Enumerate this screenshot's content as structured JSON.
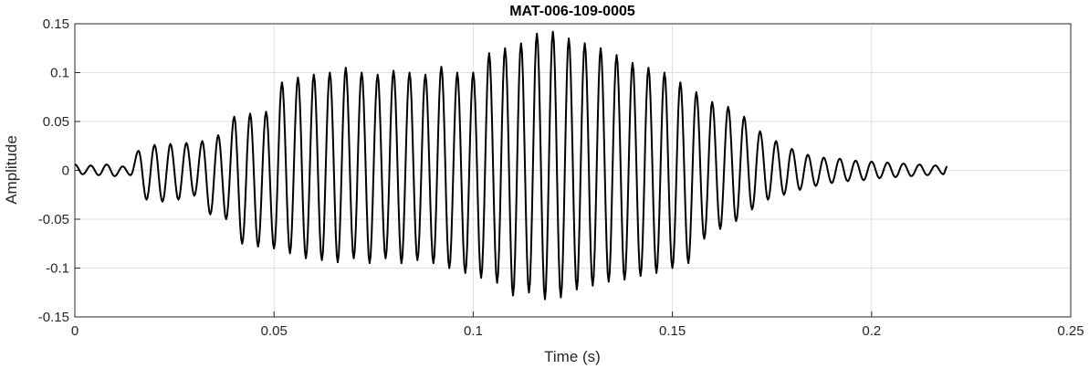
{
  "chart_data": {
    "type": "line",
    "title": "MAT-006-109-0005",
    "xlabel": "Time (s)",
    "ylabel": "Amplitude",
    "xlim": [
      0,
      0.25
    ],
    "ylim": [
      -0.15,
      0.15
    ],
    "grid": true,
    "x_ticks": [
      0,
      0.05,
      0.1,
      0.15,
      0.2,
      0.25
    ],
    "x_tick_labels": [
      "0",
      "0.05",
      "0.1",
      "0.15",
      "0.2",
      "0.25"
    ],
    "y_ticks": [
      -0.15,
      -0.1,
      -0.05,
      0,
      0.05,
      0.1,
      0.15
    ],
    "y_tick_labels": [
      "-0.15",
      "-0.1",
      "-0.05",
      "0",
      "0.05",
      "0.1",
      "0.15"
    ],
    "series": [
      {
        "color": "#000000",
        "x": [
          0,
          0.002,
          0.004,
          0.006,
          0.008,
          0.01,
          0.012,
          0.014,
          0.016,
          0.018,
          0.02,
          0.022,
          0.024,
          0.026,
          0.028,
          0.03,
          0.032,
          0.034,
          0.036,
          0.038,
          0.04,
          0.042,
          0.044,
          0.046,
          0.048,
          0.05,
          0.052,
          0.054,
          0.056,
          0.058,
          0.06,
          0.062,
          0.064,
          0.066,
          0.068,
          0.07,
          0.072,
          0.074,
          0.076,
          0.078,
          0.08,
          0.082,
          0.084,
          0.086,
          0.088,
          0.09,
          0.092,
          0.094,
          0.096,
          0.098,
          0.1,
          0.102,
          0.104,
          0.106,
          0.108,
          0.11,
          0.112,
          0.114,
          0.116,
          0.118,
          0.12,
          0.122,
          0.124,
          0.126,
          0.128,
          0.13,
          0.132,
          0.134,
          0.136,
          0.138,
          0.14,
          0.142,
          0.144,
          0.146,
          0.148,
          0.15,
          0.152,
          0.154,
          0.156,
          0.158,
          0.16,
          0.162,
          0.164,
          0.166,
          0.168,
          0.17,
          0.172,
          0.174,
          0.176,
          0.178,
          0.18,
          0.182,
          0.184,
          0.186,
          0.188,
          0.19,
          0.192,
          0.194,
          0.196,
          0.198,
          0.2,
          0.202,
          0.204,
          0.206,
          0.208,
          0.21,
          0.212,
          0.214,
          0.216,
          0.218,
          0.219
        ],
        "y": [
          0.006,
          -0.004,
          0.005,
          -0.005,
          0.006,
          -0.006,
          0.004,
          -0.005,
          0.02,
          -0.03,
          0.026,
          -0.032,
          0.027,
          -0.03,
          0.028,
          -0.026,
          0.03,
          -0.045,
          0.036,
          -0.05,
          0.055,
          -0.075,
          0.058,
          -0.078,
          0.06,
          -0.08,
          0.09,
          -0.085,
          0.095,
          -0.09,
          0.098,
          -0.092,
          0.1,
          -0.094,
          0.105,
          -0.09,
          0.1,
          -0.095,
          0.098,
          -0.09,
          0.102,
          -0.095,
          0.1,
          -0.092,
          0.098,
          -0.095,
          0.106,
          -0.1,
          0.1,
          -0.105,
          0.1,
          -0.11,
          0.12,
          -0.115,
          0.125,
          -0.128,
          0.13,
          -0.125,
          0.14,
          -0.132,
          0.142,
          -0.13,
          0.135,
          -0.122,
          0.13,
          -0.118,
          0.125,
          -0.114,
          0.118,
          -0.112,
          0.11,
          -0.108,
          0.105,
          -0.105,
          0.1,
          -0.1,
          0.09,
          -0.095,
          0.08,
          -0.07,
          0.07,
          -0.06,
          0.065,
          -0.052,
          0.055,
          -0.04,
          0.04,
          -0.03,
          0.03,
          -0.025,
          0.022,
          -0.02,
          0.016,
          -0.016,
          0.013,
          -0.013,
          0.012,
          -0.011,
          0.01,
          -0.01,
          0.009,
          -0.008,
          0.008,
          -0.007,
          0.007,
          -0.006,
          0.006,
          -0.005,
          0.005,
          -0.004,
          0.004
        ]
      }
    ]
  }
}
